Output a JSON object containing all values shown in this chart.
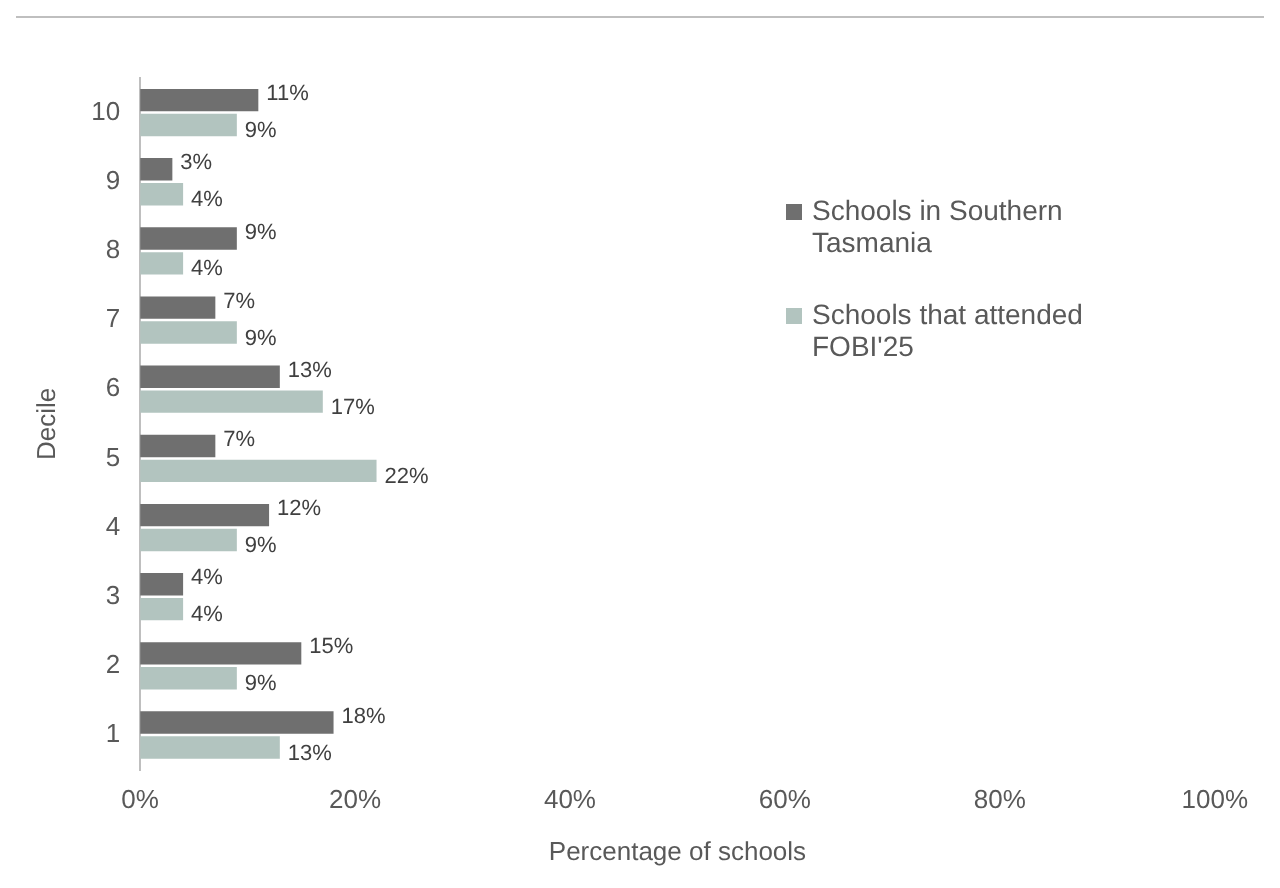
{
  "chart_data": {
    "type": "bar",
    "orientation": "horizontal",
    "xlabel": "Percentage of schools",
    "ylabel": "Decile",
    "categories": [
      "10",
      "9",
      "8",
      "7",
      "6",
      "5",
      "4",
      "3",
      "2",
      "1"
    ],
    "series": [
      {
        "name": "Schools in Southern Tasmania",
        "color": "#6f6f6f",
        "values": [
          11,
          3,
          9,
          7,
          13,
          7,
          12,
          4,
          15,
          18
        ],
        "value_labels": [
          "11%",
          "3%",
          "9%",
          "7%",
          "13%",
          "7%",
          "12%",
          "4%",
          "15%",
          "18%"
        ]
      },
      {
        "name": "Schools that attended FOBI'25",
        "color": "#b2c4bf",
        "values": [
          9,
          4,
          4,
          9,
          17,
          22,
          9,
          4,
          9,
          13
        ],
        "value_labels": [
          "9%",
          "4%",
          "4%",
          "9%",
          "17%",
          "22%",
          "9%",
          "4%",
          "9%",
          "13%"
        ]
      }
    ],
    "xlim": [
      0,
      100
    ],
    "xticks": [
      {
        "value": 0,
        "label": "0%"
      },
      {
        "value": 20,
        "label": "20%"
      },
      {
        "value": 40,
        "label": "40%"
      },
      {
        "value": 60,
        "label": "60%"
      },
      {
        "value": 80,
        "label": "80%"
      },
      {
        "value": 100,
        "label": "100%"
      }
    ],
    "grid": false,
    "legend": "right"
  }
}
